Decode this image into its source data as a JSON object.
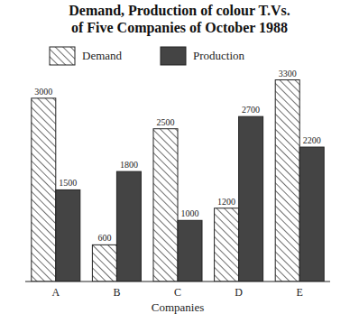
{
  "chart_data": {
    "type": "bar",
    "title": "Demand, Production of colour T.Vs. of Five Companies of October 1988",
    "x_label": "Companies",
    "categories": [
      "A",
      "B",
      "C",
      "D",
      "E"
    ],
    "series": [
      {
        "name": "Demand",
        "color": "#ffffff",
        "values": [
          3000,
          600,
          2500,
          1200,
          3300
        ]
      },
      {
        "name": "Production",
        "color": "#444444",
        "values": [
          1500,
          1800,
          1000,
          2700,
          2200
        ]
      }
    ],
    "ylim": [
      0,
      3500
    ],
    "data_labels": true,
    "tick_labels": "x",
    "legend": "top",
    "grid": false
  }
}
